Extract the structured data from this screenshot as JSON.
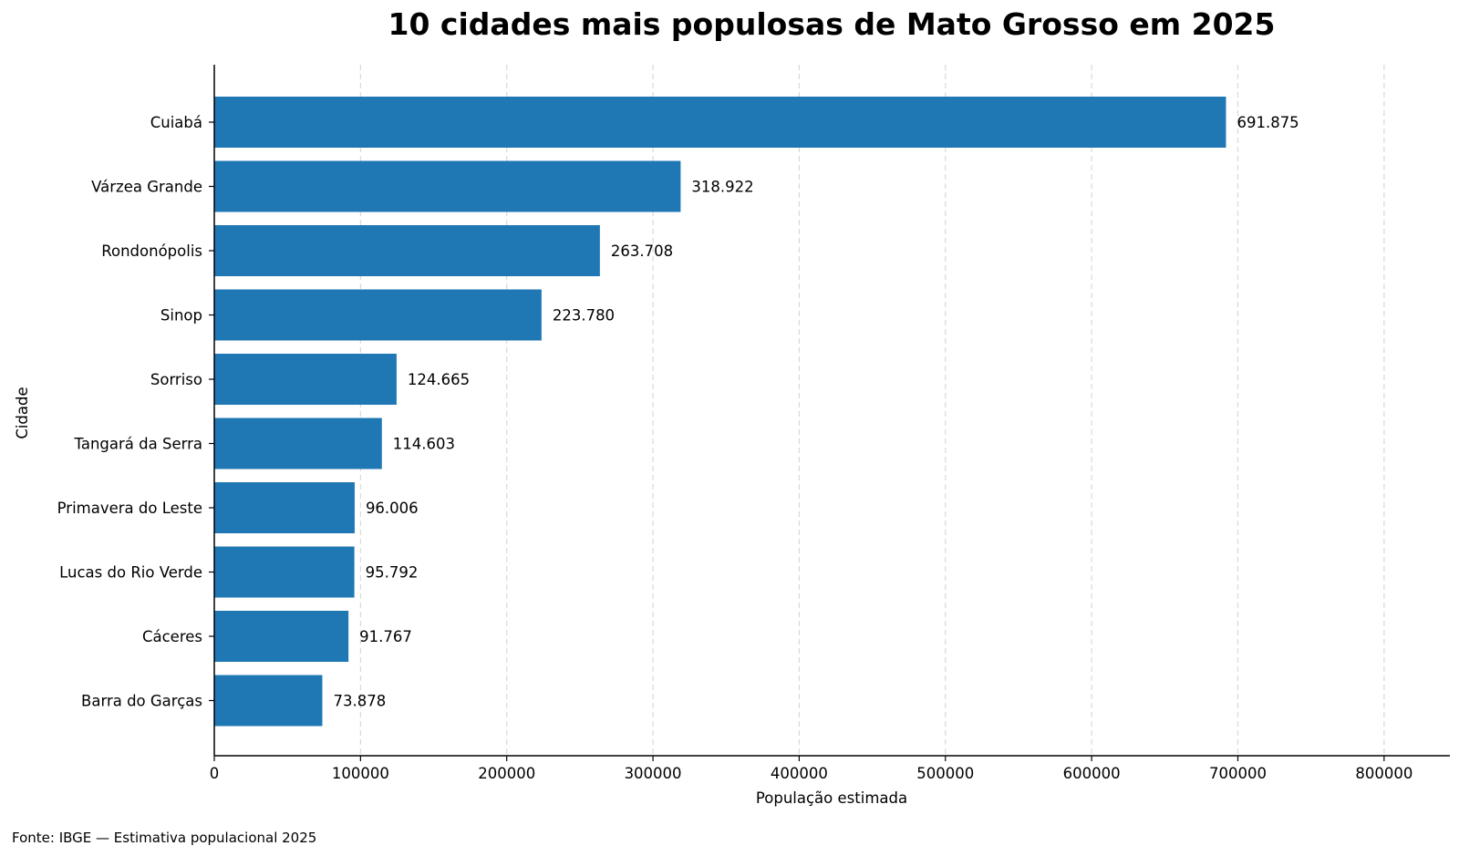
{
  "chart_data": {
    "type": "bar",
    "orientation": "horizontal",
    "title": "10 cidades mais populosas de Mato Grosso em 2025",
    "xlabel": "População estimada",
    "ylabel": "Cidade",
    "xlim": [
      0,
      845000
    ],
    "xticks": [
      0,
      100000,
      200000,
      300000,
      400000,
      500000,
      600000,
      700000,
      800000
    ],
    "xtick_labels": [
      "0",
      "100000",
      "200000",
      "300000",
      "400000",
      "500000",
      "600000",
      "700000",
      "800000"
    ],
    "grid": "vertical dashed",
    "bar_color": "#1f77b4",
    "categories": [
      "Cuiabá",
      "Várzea Grande",
      "Rondonópolis",
      "Sinop",
      "Sorriso",
      "Tangará da Serra",
      "Primavera do Leste",
      "Lucas do Rio Verde",
      "Cáceres",
      "Barra do Garças"
    ],
    "values": [
      691875,
      318922,
      263708,
      223780,
      124665,
      114603,
      96006,
      95792,
      91767,
      73878
    ],
    "value_labels": [
      "691.875",
      "318.922",
      "263.708",
      "223.780",
      "124.665",
      "114.603",
      "96.006",
      "95.792",
      "91.767",
      "73.878"
    ]
  },
  "source_note": "Fonte: IBGE — Estimativa populacional 2025"
}
